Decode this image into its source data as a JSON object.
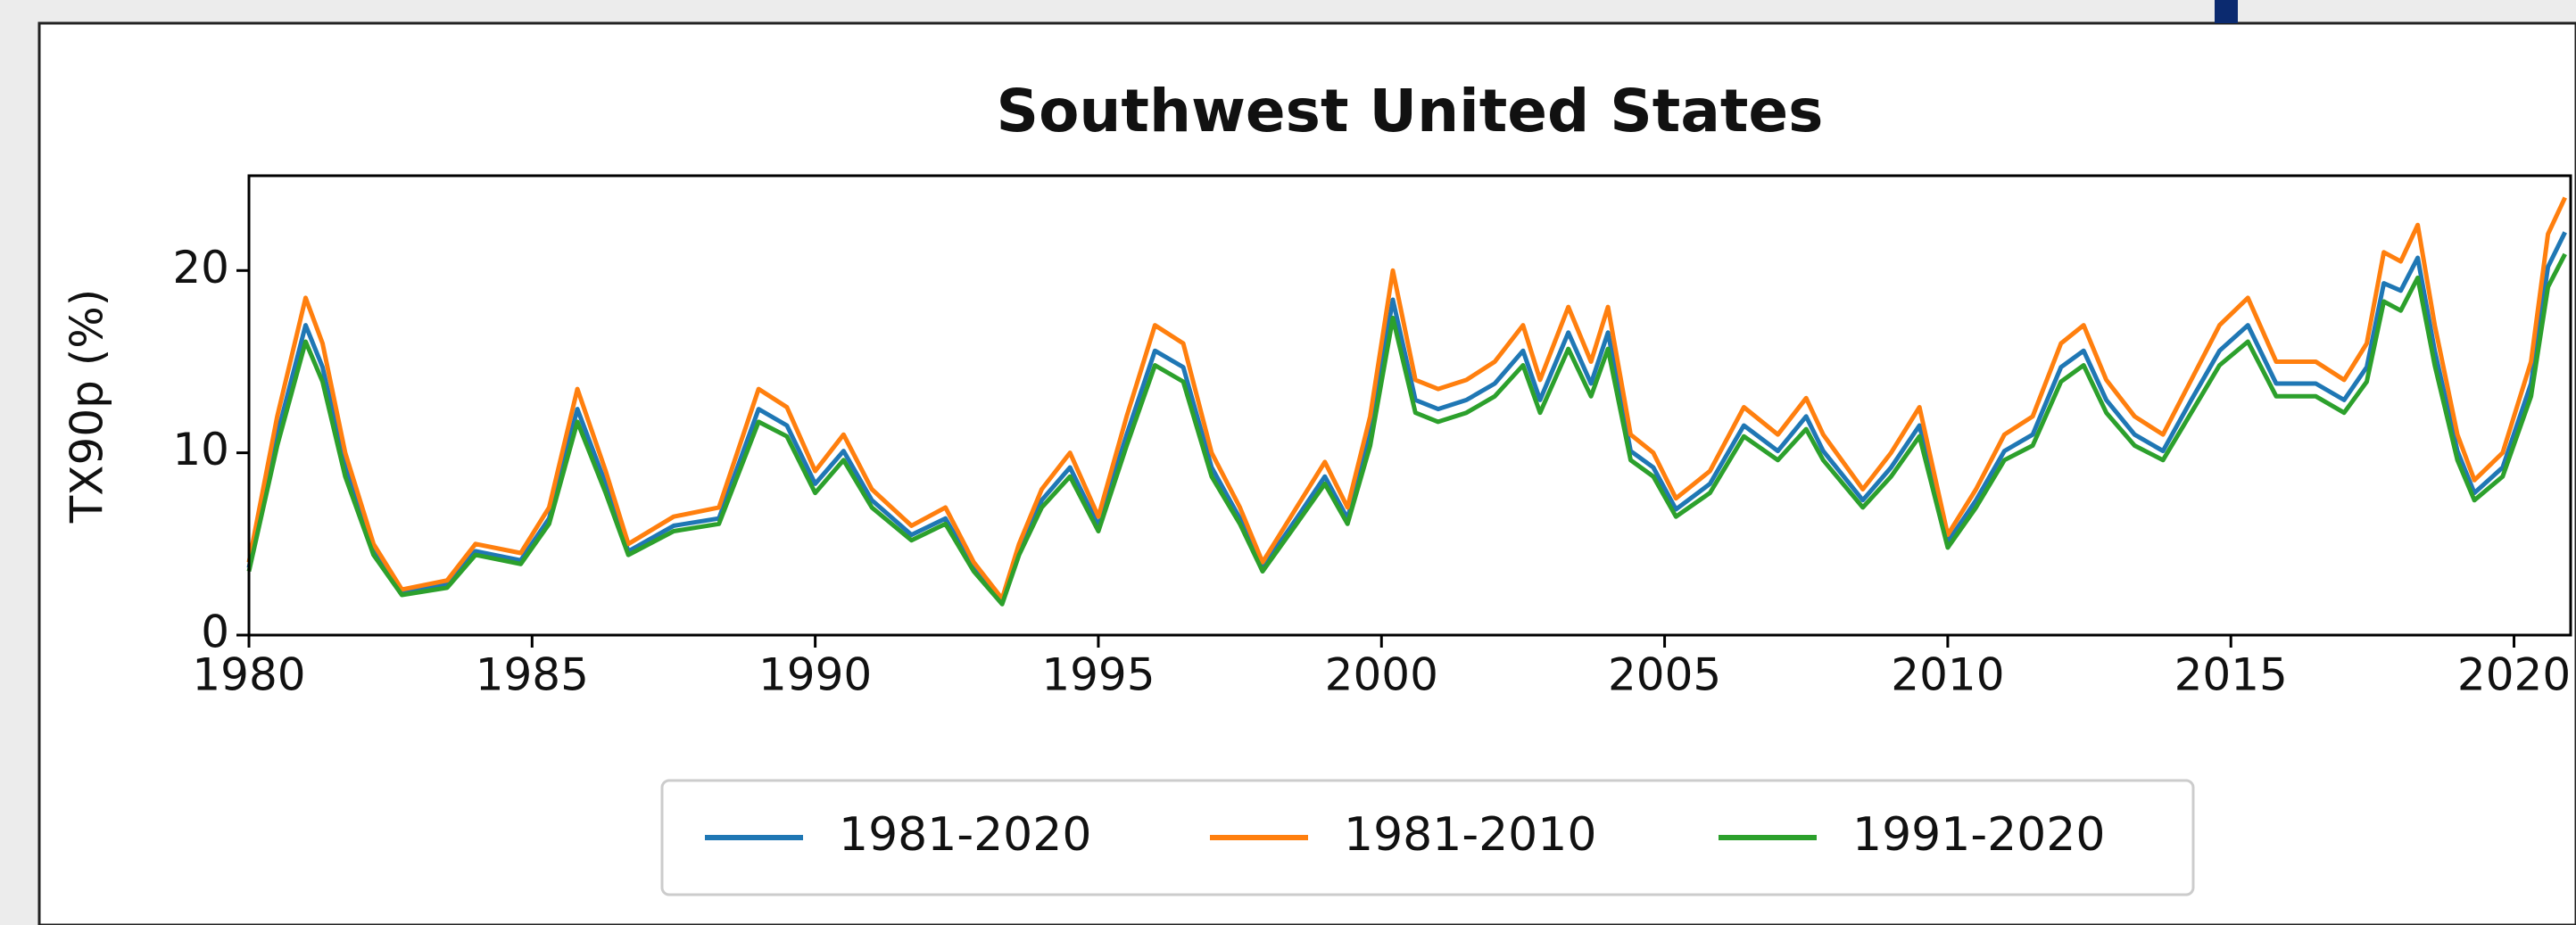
{
  "chart_data": {
    "type": "line",
    "title": "Southwest United States",
    "y_label": "TX90p (%)",
    "x": [
      1980.0,
      1980.5,
      1981.0,
      1981.3,
      1981.7,
      1982.2,
      1982.7,
      1983.5,
      1984.0,
      1984.8,
      1985.3,
      1985.8,
      1986.3,
      1986.7,
      1987.5,
      1988.3,
      1989.0,
      1989.5,
      1990.0,
      1990.5,
      1991.0,
      1991.7,
      1992.3,
      1992.8,
      1993.3,
      1993.6,
      1994.0,
      1994.5,
      1995.0,
      1995.5,
      1996.0,
      1996.5,
      1997.0,
      1997.5,
      1997.9,
      1998.5,
      1999.0,
      1999.4,
      1999.8,
      2000.2,
      2000.6,
      2001.0,
      2001.5,
      2002.0,
      2002.5,
      2002.8,
      2003.3,
      2003.7,
      2004.0,
      2004.4,
      2004.8,
      2005.2,
      2005.8,
      2006.4,
      2007.0,
      2007.5,
      2007.8,
      2008.5,
      2009.0,
      2009.5,
      2010.0,
      2010.5,
      2011.0,
      2011.5,
      2012.0,
      2012.4,
      2012.8,
      2013.3,
      2013.8,
      2014.3,
      2014.8,
      2015.3,
      2015.8,
      2016.5,
      2017.0,
      2017.4,
      2017.7,
      2018.0,
      2018.3,
      2018.6,
      2019.0,
      2019.3,
      2019.8,
      2020.3,
      2020.6,
      2020.9
    ],
    "series": [
      {
        "name": "1981-2020",
        "color": "#1f77b4",
        "values": [
          3.7,
          11,
          17,
          14.7,
          9.2,
          4.6,
          2.3,
          2.8,
          4.6,
          4.1,
          6.4,
          12.4,
          8.3,
          4.6,
          6,
          6.4,
          12.4,
          11.5,
          8.3,
          10.1,
          7.4,
          5.5,
          6.4,
          3.7,
          1.8,
          4.6,
          7.4,
          9.2,
          6,
          11,
          15.6,
          14.7,
          9.2,
          6.4,
          3.7,
          6.4,
          8.7,
          6.4,
          11,
          18.4,
          12.9,
          12.4,
          12.9,
          13.8,
          15.6,
          12.9,
          16.6,
          13.8,
          16.6,
          10.1,
          9.2,
          6.9,
          8.3,
          11.5,
          10.1,
          12,
          10.1,
          7.4,
          9.2,
          11.5,
          5.1,
          7.4,
          10.1,
          11,
          14.7,
          15.6,
          12.9,
          11,
          10.1,
          12.9,
          15.6,
          17,
          13.8,
          13.8,
          12.9,
          14.7,
          19.3,
          18.9,
          20.7,
          15.6,
          10.1,
          7.8,
          9.2,
          13.8,
          20.2,
          22.1
        ]
      },
      {
        "name": "1981-2010",
        "color": "#ff7f0e",
        "values": [
          4,
          12,
          18.5,
          16,
          10,
          5,
          2.5,
          3,
          5,
          4.5,
          7,
          13.5,
          9,
          5,
          6.5,
          7,
          13.5,
          12.5,
          9,
          11,
          8,
          6,
          7,
          4,
          2,
          5,
          8,
          10,
          6.5,
          12,
          17,
          16,
          10,
          7,
          4,
          7,
          9.5,
          7,
          12,
          20,
          14,
          13.5,
          14,
          15,
          17,
          14,
          18,
          15,
          18,
          11,
          10,
          7.5,
          9,
          12.5,
          11,
          13,
          11,
          8,
          10,
          12.5,
          5.5,
          8,
          11,
          12,
          16,
          17,
          14,
          12,
          11,
          14,
          17,
          18.5,
          15,
          15,
          14,
          16,
          21,
          20.5,
          22.5,
          17,
          11,
          8.5,
          10,
          15,
          22,
          24
        ]
      },
      {
        "name": "1991-2020",
        "color": "#2ca02c",
        "values": [
          3.5,
          10.4,
          16.1,
          13.9,
          8.7,
          4.4,
          2.2,
          2.6,
          4.4,
          3.9,
          6.1,
          11.7,
          7.8,
          4.4,
          5.7,
          6.1,
          11.7,
          10.9,
          7.8,
          9.6,
          7,
          5.2,
          6.1,
          3.5,
          1.7,
          4.4,
          7,
          8.7,
          5.7,
          10.4,
          14.8,
          13.9,
          8.7,
          6.1,
          3.5,
          6.1,
          8.3,
          6.1,
          10.4,
          17.4,
          12.2,
          11.7,
          12.2,
          13.1,
          14.8,
          12.2,
          15.7,
          13.1,
          15.7,
          9.6,
          8.7,
          6.5,
          7.8,
          10.9,
          9.6,
          11.3,
          9.6,
          7,
          8.7,
          10.9,
          4.8,
          7,
          9.6,
          10.4,
          13.9,
          14.8,
          12.2,
          10.4,
          9.6,
          12.2,
          14.8,
          16.1,
          13.1,
          13.1,
          12.2,
          13.9,
          18.3,
          17.8,
          19.6,
          14.8,
          9.6,
          7.4,
          8.7,
          13.1,
          19.1,
          20.9
        ]
      }
    ],
    "xlim": [
      1980,
      2021
    ],
    "xticks": [
      1980,
      1985,
      1990,
      1995,
      2000,
      2005,
      2010,
      2015,
      2020
    ],
    "ylim": [
      0,
      25.2
    ],
    "yticks": [
      0,
      10,
      20
    ]
  }
}
